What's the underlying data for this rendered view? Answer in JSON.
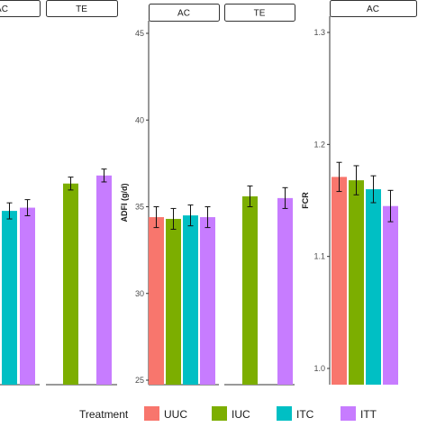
{
  "colors": {
    "UUC": "#f8766d",
    "IUC": "#7cae00",
    "ITC": "#00bfc4",
    "ITT": "#c77cff"
  },
  "chart_data": [
    {
      "type": "bar",
      "panels": [
        {
          "label": "AC",
          "categories": [
            "UUC",
            "IUC",
            "ITC",
            "ITT"
          ],
          "values": [
            null,
            null,
            35.1,
            35.3
          ],
          "errors": [
            null,
            null,
            0.5,
            0.5
          ]
        },
        {
          "label": "TE",
          "categories": [
            "UUC",
            "IUC",
            "ITC",
            "ITT"
          ],
          "values": [
            null,
            36.8,
            null,
            37.3
          ],
          "errors": [
            null,
            0.4,
            null,
            0.4
          ]
        }
      ],
      "yticks": [],
      "ylabel": ""
    },
    {
      "type": "bar",
      "panels": [
        {
          "label": "AC",
          "categories": [
            "UUC",
            "IUC",
            "ITC",
            "ITT"
          ],
          "values": [
            34.4,
            34.3,
            34.5,
            34.4
          ],
          "errors": [
            0.6,
            0.6,
            0.6,
            0.6
          ]
        },
        {
          "label": "TE",
          "categories": [
            "UUC",
            "IUC",
            "ITC",
            "ITT"
          ],
          "values": [
            null,
            35.6,
            null,
            35.5
          ],
          "errors": [
            null,
            0.6,
            null,
            0.6
          ]
        }
      ],
      "ylim": [
        24.3,
        47.2
      ],
      "yticks": [
        25,
        30,
        35,
        40,
        45
      ],
      "ylabel": "ADFI (g/d)"
    },
    {
      "type": "bar",
      "panels": [
        {
          "label": "AC",
          "categories": [
            "UUC",
            "IUC",
            "ITC",
            "ITT"
          ],
          "values": [
            1.171,
            1.168,
            1.16,
            1.145
          ],
          "errors": [
            0.013,
            0.013,
            0.012,
            0.014
          ]
        }
      ],
      "ylim": [
        0.983,
        1.318
      ],
      "yticks": [
        1.0,
        1.1,
        1.2,
        1.3
      ],
      "yticklabels": [
        "1.0",
        "1.1",
        "1.2",
        "1.3"
      ],
      "ylabel": "FCR"
    }
  ],
  "legend": {
    "title": "Treatment",
    "items": [
      "UUC",
      "IUC",
      "ITC",
      "ITT"
    ]
  }
}
